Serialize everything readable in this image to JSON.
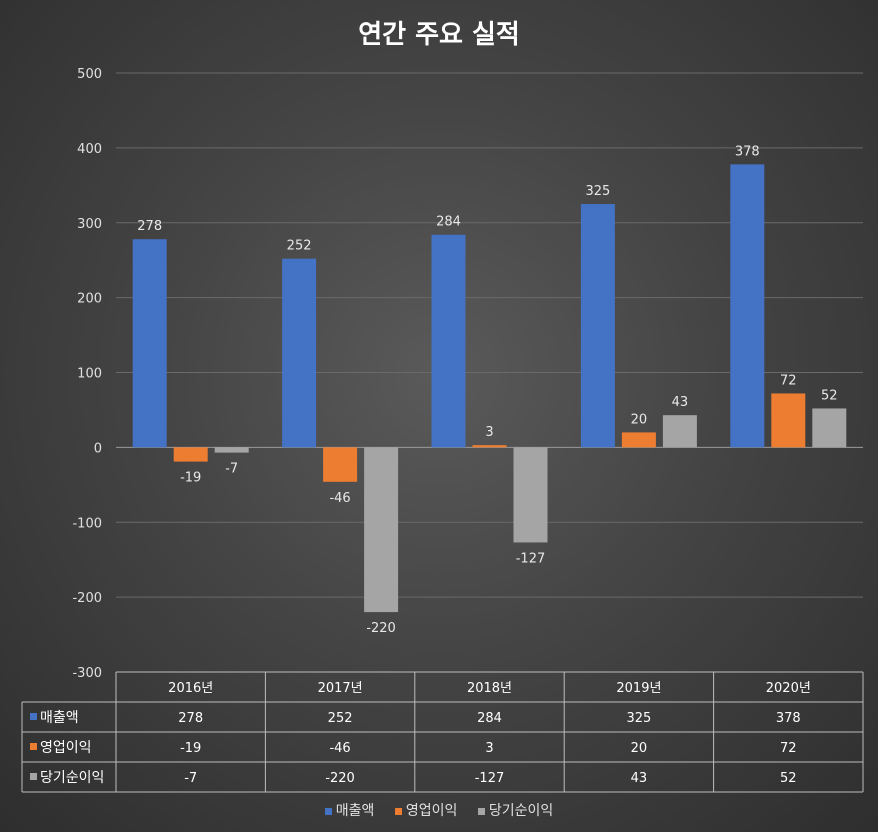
{
  "chart_data": {
    "type": "bar",
    "title": "연간 주요 실적",
    "categories": [
      "2016년",
      "2017년",
      "2018년",
      "2019년",
      "2020년"
    ],
    "series": [
      {
        "name": "매출액",
        "color": "#4472C4",
        "values": [
          278,
          252,
          284,
          325,
          378
        ]
      },
      {
        "name": "영업이익",
        "color": "#ED7D31",
        "values": [
          -19,
          -46,
          3,
          20,
          72
        ]
      },
      {
        "name": "당기순이익",
        "color": "#A5A5A5",
        "values": [
          -7,
          -220,
          -127,
          43,
          52
        ]
      }
    ],
    "ylim": [
      -300,
      500
    ],
    "yticks": [
      500,
      400,
      300,
      200,
      100,
      0,
      -100,
      -200,
      -300
    ],
    "grid": true,
    "data_table": true,
    "legend_position": "bottom"
  }
}
